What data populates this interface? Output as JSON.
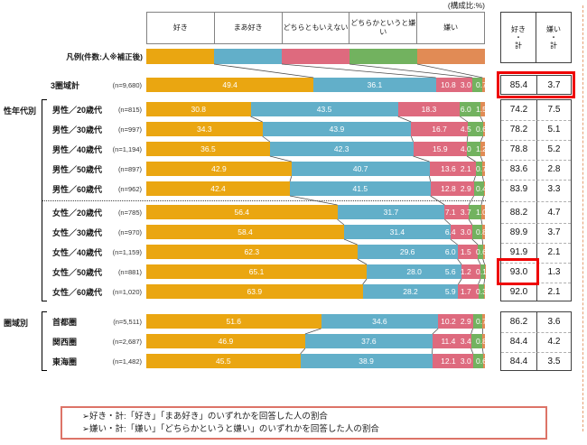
{
  "chart_data": {
    "type": "bar",
    "variant": "horizontal-stacked-100-percent",
    "unit": "%",
    "composition_label": "(構成比:%)",
    "series": [
      "好き",
      "まあ好き",
      "どちらともいえない",
      "どちらかというと嫌い",
      "嫌い"
    ],
    "series_colors": [
      "#EAA611",
      "#62AFC9",
      "#DE6A7E",
      "#72B25F",
      "#E18B55"
    ],
    "legend_label": "凡例(件数:人※補正後)",
    "summary_columns": [
      "好き・計",
      "嫌い・計"
    ],
    "highlight_color": "#ee0000",
    "groups": [
      {
        "name": "",
        "rows": [
          {
            "label": "3圏域計",
            "n": "(n=9,680)",
            "values": [
              49.4,
              36.1,
              10.8,
              3.0,
              0.7
            ],
            "like_total": "85.4",
            "dislike_total": "3.7",
            "highlight": "totals-row"
          }
        ]
      },
      {
        "name": "性年代別",
        "divider_after": 4,
        "rows": [
          {
            "label": "男性／20歳代",
            "n": "(n=815)",
            "values": [
              30.8,
              43.5,
              18.3,
              6.0,
              1.5
            ],
            "like_total": "74.2",
            "dislike_total": "7.5"
          },
          {
            "label": "男性／30歳代",
            "n": "(n=997)",
            "values": [
              34.3,
              43.9,
              16.7,
              4.5,
              0.6
            ],
            "like_total": "78.2",
            "dislike_total": "5.1"
          },
          {
            "label": "男性／40歳代",
            "n": "(n=1,194)",
            "values": [
              36.5,
              42.3,
              15.9,
              4.0,
              1.2
            ],
            "like_total": "78.8",
            "dislike_total": "5.2"
          },
          {
            "label": "男性／50歳代",
            "n": "(n=897)",
            "values": [
              42.9,
              40.7,
              13.6,
              2.1,
              0.7
            ],
            "like_total": "83.6",
            "dislike_total": "2.8"
          },
          {
            "label": "男性／60歳代",
            "n": "(n=962)",
            "values": [
              42.4,
              41.5,
              12.8,
              2.9,
              0.4
            ],
            "like_total": "83.9",
            "dislike_total": "3.3"
          },
          {
            "label": "女性／20歳代",
            "n": "(n=785)",
            "values": [
              56.4,
              31.7,
              7.1,
              3.7,
              1.0
            ],
            "like_total": "88.2",
            "dislike_total": "4.7"
          },
          {
            "label": "女性／30歳代",
            "n": "(n=970)",
            "values": [
              58.4,
              31.4,
              6.4,
              3.0,
              0.8
            ],
            "like_total": "89.9",
            "dislike_total": "3.7"
          },
          {
            "label": "女性／40歳代",
            "n": "(n=1,159)",
            "values": [
              62.3,
              29.6,
              6.0,
              1.5,
              0.6
            ],
            "like_total": "91.9",
            "dislike_total": "2.1"
          },
          {
            "label": "女性／50歳代",
            "n": "(n=881)",
            "values": [
              65.1,
              28.0,
              5.6,
              1.2,
              0.1
            ],
            "like_total": "93.0",
            "dislike_total": "1.3",
            "highlight": "like-total"
          },
          {
            "label": "女性／60歳代",
            "n": "(n=1,020)",
            "values": [
              63.9,
              28.2,
              5.9,
              1.7,
              0.3
            ],
            "like_total": "92.0",
            "dislike_total": "2.1"
          }
        ]
      },
      {
        "name": "圏域別",
        "rows": [
          {
            "label": "首都圏",
            "n": "(n=5,511)",
            "values": [
              51.6,
              34.6,
              10.2,
              2.9,
              0.7
            ],
            "like_total": "86.2",
            "dislike_total": "3.6"
          },
          {
            "label": "関西圏",
            "n": "(n=2,687)",
            "values": [
              46.9,
              37.6,
              11.4,
              3.4,
              0.8
            ],
            "like_total": "84.4",
            "dislike_total": "4.2"
          },
          {
            "label": "東海圏",
            "n": "(n=1,482)",
            "values": [
              45.5,
              38.9,
              12.1,
              3.0,
              0.6
            ],
            "like_total": "84.4",
            "dislike_total": "3.5"
          }
        ]
      }
    ],
    "notes": [
      "➢好き・計:「好き」「まあ好き」のいずれかを回答した人の割合",
      "➢嫌い・計:「嫌い」「どちらかというと嫌い」のいずれかを回答した人の割合"
    ]
  }
}
